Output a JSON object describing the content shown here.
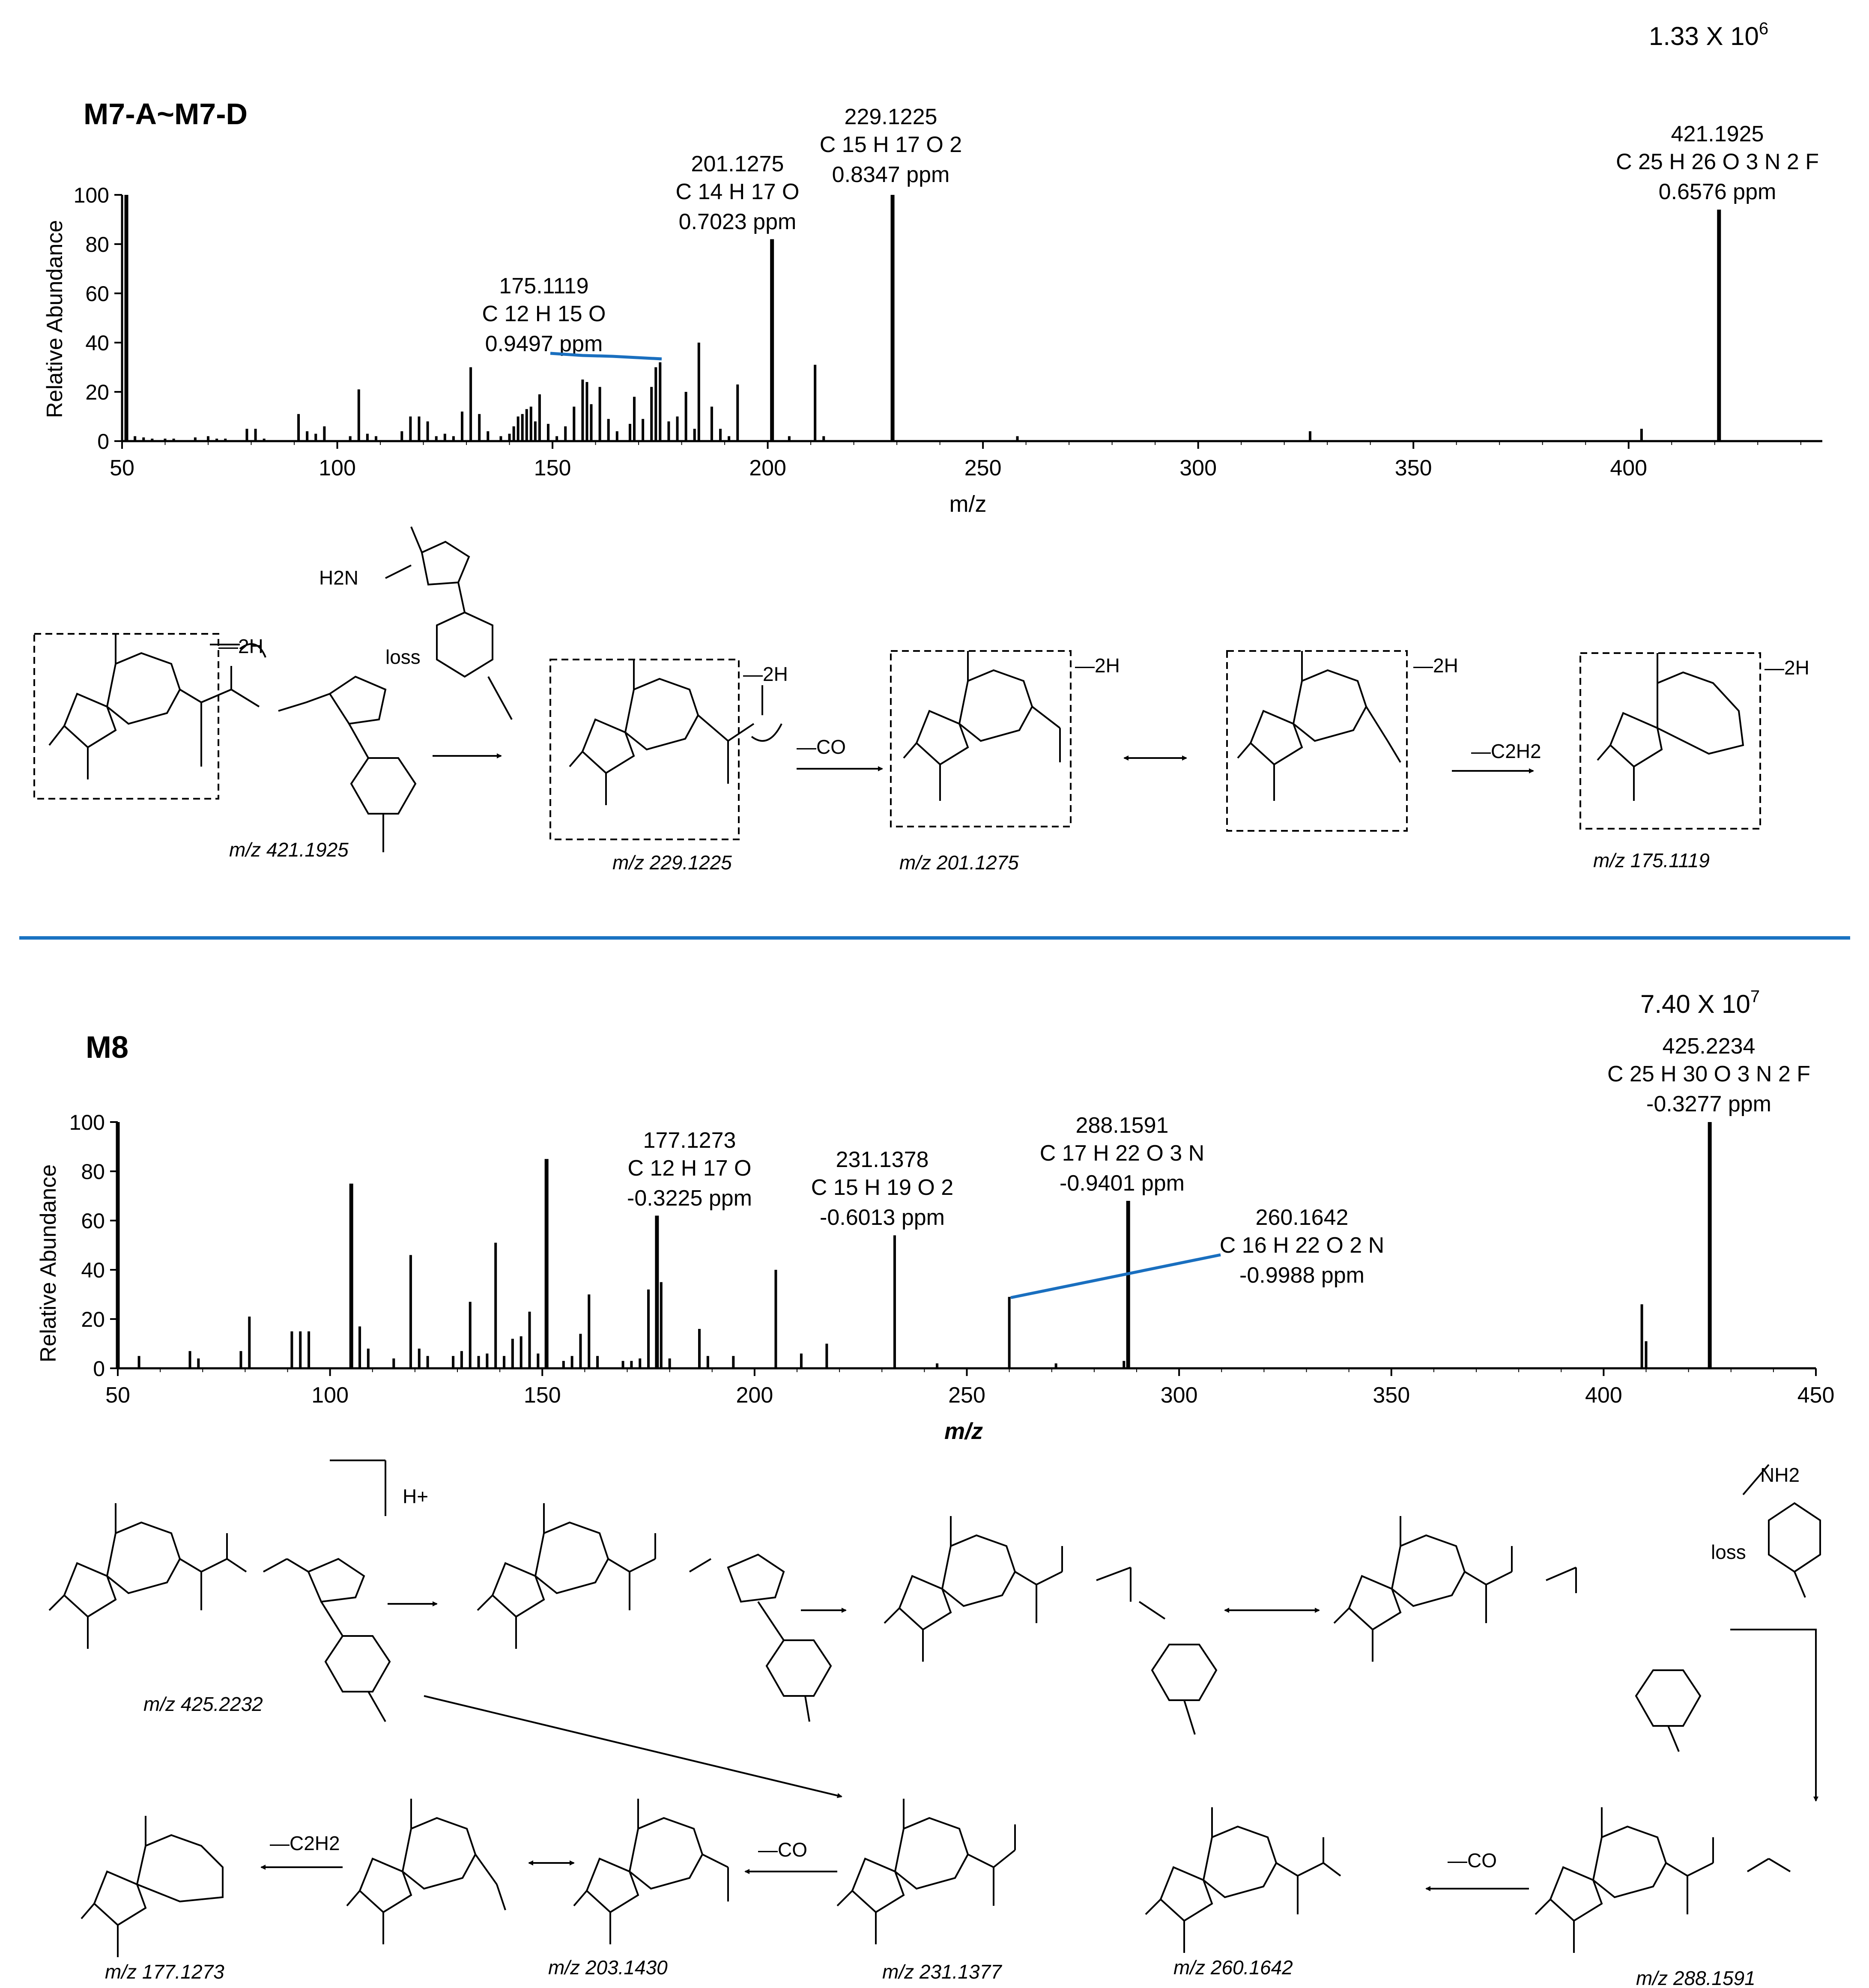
{
  "chart_data": [
    {
      "type": "bar",
      "title": "M7-A~M7-D",
      "intensity_scale": "1.33 X 10",
      "intensity_exponent": "6",
      "xlabel": "m/z",
      "ylabel": "Relative Abundance",
      "xlim": [
        50,
        445
      ],
      "ylim": [
        0,
        100
      ],
      "xticks": [
        50,
        100,
        150,
        200,
        250,
        300,
        350,
        400
      ],
      "yticks": [
        0,
        20,
        40,
        60,
        80,
        100
      ],
      "peaks": [
        [
          51,
          100
        ],
        [
          53,
          2
        ],
        [
          55,
          1.5
        ],
        [
          57,
          1
        ],
        [
          60,
          1
        ],
        [
          62,
          1
        ],
        [
          67,
          1.5
        ],
        [
          70,
          2
        ],
        [
          72,
          1
        ],
        [
          74,
          1
        ],
        [
          79,
          5
        ],
        [
          81,
          5
        ],
        [
          83,
          1
        ],
        [
          91,
          11
        ],
        [
          93,
          4
        ],
        [
          95,
          3
        ],
        [
          97,
          6
        ],
        [
          103,
          2
        ],
        [
          105,
          21
        ],
        [
          107,
          3
        ],
        [
          109,
          2
        ],
        [
          115,
          4
        ],
        [
          117,
          10
        ],
        [
          119,
          10
        ],
        [
          121,
          8
        ],
        [
          123,
          2
        ],
        [
          125,
          3
        ],
        [
          127,
          2
        ],
        [
          129,
          12
        ],
        [
          131,
          30
        ],
        [
          133,
          11
        ],
        [
          135,
          4
        ],
        [
          138,
          2
        ],
        [
          140,
          3
        ],
        [
          141,
          6
        ],
        [
          142,
          10
        ],
        [
          143,
          11
        ],
        [
          144,
          13
        ],
        [
          145,
          14
        ],
        [
          146,
          8
        ],
        [
          147,
          19
        ],
        [
          149,
          7
        ],
        [
          151,
          2
        ],
        [
          153,
          6
        ],
        [
          155,
          14
        ],
        [
          157,
          25
        ],
        [
          158,
          24
        ],
        [
          159,
          15
        ],
        [
          161,
          22
        ],
        [
          163,
          9
        ],
        [
          165,
          4
        ],
        [
          168,
          7
        ],
        [
          169,
          18
        ],
        [
          171,
          9
        ],
        [
          173,
          22
        ],
        [
          174,
          30
        ],
        [
          175,
          32
        ],
        [
          177,
          8
        ],
        [
          179,
          10
        ],
        [
          181,
          20
        ],
        [
          183,
          5
        ],
        [
          184,
          40
        ],
        [
          187,
          14
        ],
        [
          189,
          5
        ],
        [
          191,
          2
        ],
        [
          193,
          23
        ],
        [
          201,
          82
        ],
        [
          205,
          2
        ],
        [
          211,
          31
        ],
        [
          213,
          2
        ],
        [
          229,
          100
        ],
        [
          258,
          2
        ],
        [
          326,
          4
        ],
        [
          403,
          5
        ],
        [
          421,
          94
        ]
      ],
      "annotations": [
        {
          "lines": [
            "175.1119",
            "C 12 H 15 O",
            "0.9497 ppm"
          ]
        },
        {
          "lines": [
            "201.1275",
            "C 14 H 17 O",
            "0.7023 ppm"
          ]
        },
        {
          "lines": [
            "229.1225",
            "C 15 H 17 O 2",
            "0.8347 ppm"
          ]
        },
        {
          "lines": [
            "421.1925",
            "C 25 H 26 O 3 N 2 F",
            "0.6576 ppm"
          ]
        }
      ]
    },
    {
      "type": "bar",
      "title": "M8",
      "intensity_scale": "7.40 X 10",
      "intensity_exponent": "7",
      "xlabel": "m/z",
      "ylabel": "Relative Abundance",
      "xlim": [
        50,
        450
      ],
      "ylim": [
        0,
        100
      ],
      "xticks": [
        50,
        100,
        150,
        200,
        250,
        300,
        350,
        400,
        450
      ],
      "yticks": [
        0,
        20,
        40,
        60,
        80,
        100
      ],
      "peaks": [
        [
          50,
          100
        ],
        [
          55,
          5
        ],
        [
          67,
          7
        ],
        [
          69,
          4
        ],
        [
          79,
          7
        ],
        [
          81,
          21
        ],
        [
          91,
          15
        ],
        [
          93,
          15
        ],
        [
          95,
          15
        ],
        [
          105,
          75
        ],
        [
          107,
          17
        ],
        [
          109,
          8
        ],
        [
          115,
          4
        ],
        [
          119,
          46
        ],
        [
          121,
          8
        ],
        [
          123,
          5
        ],
        [
          129,
          5
        ],
        [
          131,
          7
        ],
        [
          133,
          27
        ],
        [
          135,
          5
        ],
        [
          137,
          6
        ],
        [
          139,
          51
        ],
        [
          141,
          5
        ],
        [
          143,
          12
        ],
        [
          145,
          13
        ],
        [
          147,
          23
        ],
        [
          149,
          6
        ],
        [
          151,
          85
        ],
        [
          155,
          3
        ],
        [
          157,
          5
        ],
        [
          159,
          14
        ],
        [
          161,
          30
        ],
        [
          163,
          5
        ],
        [
          169,
          3
        ],
        [
          171,
          3
        ],
        [
          173,
          4
        ],
        [
          175,
          32
        ],
        [
          177,
          62
        ],
        [
          178,
          35
        ],
        [
          180,
          4
        ],
        [
          187,
          16
        ],
        [
          189,
          5
        ],
        [
          195,
          5
        ],
        [
          205,
          40
        ],
        [
          211,
          6
        ],
        [
          217,
          10
        ],
        [
          233,
          54
        ],
        [
          243,
          2
        ],
        [
          260,
          29
        ],
        [
          271,
          2
        ],
        [
          288,
          68
        ],
        [
          287,
          3
        ],
        [
          409,
          26
        ],
        [
          410,
          11
        ],
        [
          425,
          100
        ]
      ],
      "annotations": [
        {
          "lines": [
            "177.1273",
            "C 12 H 17 O",
            "-0.3225 ppm"
          ]
        },
        {
          "lines": [
            "231.1378",
            "C 15 H 19 O 2",
            "-0.6013 ppm"
          ]
        },
        {
          "lines": [
            "288.1591",
            "C 17 H 22 O 3 N",
            "-0.9401 ppm"
          ]
        },
        {
          "lines": [
            "260.1642",
            "C 16 H 22 O 2 N",
            "-0.9988 ppm"
          ]
        },
        {
          "lines": [
            "425.2234",
            "C 25 H 30 O 3 N 2 F",
            "-0.3277 ppm"
          ]
        }
      ]
    }
  ],
  "scheme_top": {
    "loss": "loss",
    "minus_2h": "—2H",
    "minus_co": "—CO",
    "minus_c2h2": "—C2H2",
    "nh2_group": "H2N",
    "captions": [
      "m/z 421.1925",
      "m/z 229.1225",
      "m/z 201.1275",
      "m/z 175.1119"
    ]
  },
  "scheme_bottom": {
    "loss": "loss",
    "proton": "H+",
    "minus_co": "—CO",
    "minus_c2h2": "—C2H2",
    "nh2_group": "NH2",
    "captions": [
      "m/z 425.2232",
      "m/z 177.1273",
      "m/z 203.1430",
      "m/z 231.1377",
      "m/z 260.1642",
      "m/z 288.1591"
    ]
  },
  "colors": {
    "ink": "#000000",
    "highlight": "#1a6fbf",
    "divider": "#1a73c2"
  }
}
